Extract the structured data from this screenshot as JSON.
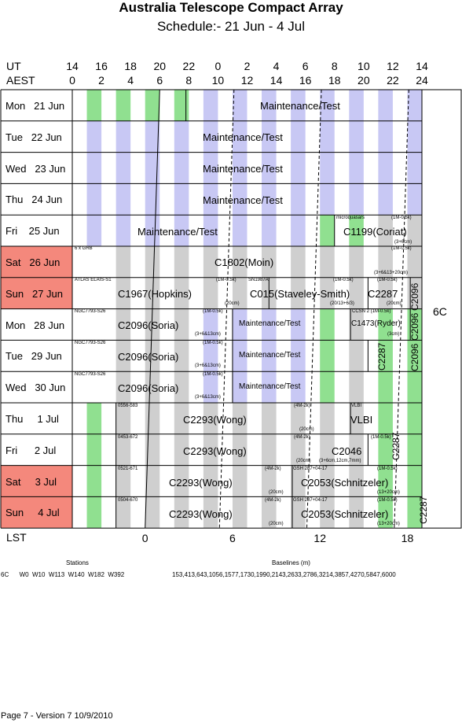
{
  "title": "Australia Telescope Compact Array",
  "subtitle": "Schedule:- 21 Jun - 4  Jul",
  "axis": {
    "ut_label": "UT",
    "aest_label": "AEST",
    "lst_label": "LST",
    "ut_ticks": [
      "14",
      "16",
      "18",
      "20",
      "22",
      "0",
      "2",
      "4",
      "6",
      "8",
      "10",
      "12",
      "14"
    ],
    "aest_ticks": [
      "0",
      "2",
      "4",
      "6",
      "8",
      "10",
      "12",
      "14",
      "16",
      "18",
      "20",
      "22",
      "24"
    ],
    "lst_ticks": [
      "0",
      "6",
      "12",
      "18"
    ]
  },
  "colors": {
    "weekend": "#f4887c",
    "gray": "#cfcfcf",
    "blue": "#c8c8f4",
    "green": "#90e090"
  },
  "days": [
    {
      "label": "Mon   21 Jun",
      "weekend": false
    },
    {
      "label": "Tue   22 Jun",
      "weekend": false
    },
    {
      "label": "Wed   23 Jun",
      "weekend": false
    },
    {
      "label": "Thu   24 Jun",
      "weekend": false
    },
    {
      "label": "Fri    25 Jun",
      "weekend": false
    },
    {
      "label": "Sat   26 Jun",
      "weekend": true
    },
    {
      "label": "Sun   27 Jun",
      "weekend": true
    },
    {
      "label": "Mon   28 Jun",
      "weekend": false
    },
    {
      "label": "Tue   29 Jun",
      "weekend": false
    },
    {
      "label": "Wed   30 Jun",
      "weekend": false
    },
    {
      "label": "Thu     1 Jul",
      "weekend": false
    },
    {
      "label": "Fri      2 Jul",
      "weekend": false
    },
    {
      "label": "Sat     3 Jul",
      "weekend": true
    },
    {
      "label": "Sun     4 Jul",
      "weekend": true
    }
  ],
  "array_config": "6C",
  "blocks": [
    {
      "text": "Maintenance/Test",
      "size": 13
    },
    {
      "text": "Maintenance/Test",
      "size": 13
    },
    {
      "text": "Maintenance/Test",
      "size": 13
    },
    {
      "text": "Maintenance/Test",
      "size": 13
    },
    {
      "text": "Maintenance/Test",
      "size": 13
    },
    {
      "text": "microquasars",
      "size": 6
    },
    {
      "text": "(1M-0.5k)",
      "size": 6
    },
    {
      "text": "C1199(Coriat)",
      "size": 13
    },
    {
      "text": "(3+6cm)",
      "size": 6
    },
    {
      "text": "6 x GRB",
      "size": 6
    },
    {
      "text": "(1M-0.5k)",
      "size": 6
    },
    {
      "text": "C1802(Moin)",
      "size": 13
    },
    {
      "text": "(3+6&13+20cm)",
      "size": 6
    },
    {
      "text": "ATLAS ELAIS-S1",
      "size": 6
    },
    {
      "text": "(1M-0.5k)",
      "size": 6
    },
    {
      "text": "C1967(Hopkins)",
      "size": 13
    },
    {
      "text": "(20cm)",
      "size": 6
    },
    {
      "text": "SN1987A",
      "size": 6
    },
    {
      "text": "(1M-0.5k)",
      "size": 6
    },
    {
      "text": "C015(Staveley-Smith)",
      "size": 13
    },
    {
      "text": "(20/13+6/3)",
      "size": 6
    },
    {
      "text": "(1M-0.5k)",
      "size": 6
    },
    {
      "text": "C2287",
      "size": 13
    },
    {
      "text": "(20cm)",
      "size": 6
    },
    {
      "text": "C2096",
      "size": 12
    },
    {
      "text": "NGC7793-S26",
      "size": 6
    },
    {
      "text": "(1M-0.5k)",
      "size": 6
    },
    {
      "text": "C2096(Soria)",
      "size": 13
    },
    {
      "text": "(3+6&13cm)",
      "size": 6
    },
    {
      "text": "Maintenance/Test",
      "size": 10
    },
    {
      "text": "CCSN 2 (1M-0.5k)",
      "size": 6
    },
    {
      "text": "C1473(Ryder)",
      "size": 10
    },
    {
      "text": "(3cm)",
      "size": 6
    },
    {
      "text": "C2096",
      "size": 12
    },
    {
      "text": "NGC7793-S26",
      "size": 6
    },
    {
      "text": "(1M-0.5k)",
      "size": 6
    },
    {
      "text": "C2096(Soria)",
      "size": 13
    },
    {
      "text": "(3+6&13cm)",
      "size": 6
    },
    {
      "text": "Maintenance/Test",
      "size": 10
    },
    {
      "text": "C2287",
      "size": 12
    },
    {
      "text": "C2096",
      "size": 12
    },
    {
      "text": "NGC7793-S26",
      "size": 6
    },
    {
      "text": "(1M-0.5k)",
      "size": 6
    },
    {
      "text": "C2096(Soria)",
      "size": 13
    },
    {
      "text": "(3+6&13cm)",
      "size": 6
    },
    {
      "text": "Maintenance/Test",
      "size": 10
    },
    {
      "text": "0556-583",
      "size": 6
    },
    {
      "text": "C2293(Wong)",
      "size": 13
    },
    {
      "text": "(4M-2k)",
      "size": 6
    },
    {
      "text": "(20cm)",
      "size": 6
    },
    {
      "text": "VLBI",
      "size": 6
    },
    {
      "text": "VLBI",
      "size": 13
    },
    {
      "text": "0453-672",
      "size": 6
    },
    {
      "text": "C2293(Wong)",
      "size": 13
    },
    {
      "text": "(4M-2k)",
      "size": 6
    },
    {
      "text": "(1M-0.5k)",
      "size": 6
    },
    {
      "text": "C2046",
      "size": 13
    },
    {
      "text": "(20cm)",
      "size": 6
    },
    {
      "text": "(3+6cm,12cm,7mm)",
      "size": 6
    },
    {
      "text": "C2287",
      "size": 12
    },
    {
      "text": "0521-671",
      "size": 6
    },
    {
      "text": "(4M-2k)",
      "size": 6
    },
    {
      "text": "GSH 287+04-17",
      "size": 6
    },
    {
      "text": "(1M-0.5k)",
      "size": 6
    },
    {
      "text": "C2293(Wong)",
      "size": 13
    },
    {
      "text": "C2053(Schnitzeler)",
      "size": 13
    },
    {
      "text": "(20cm)",
      "size": 6
    },
    {
      "text": "(13+20cm)",
      "size": 6
    },
    {
      "text": "0504-670",
      "size": 6
    },
    {
      "text": "(4M-2k)",
      "size": 6
    },
    {
      "text": "GSH 287+04-17",
      "size": 6
    },
    {
      "text": "(1M-0.5k)",
      "size": 6
    },
    {
      "text": "C2293(Wong)",
      "size": 13
    },
    {
      "text": "C2053(Schnitzeler)",
      "size": 13
    },
    {
      "text": "(20cm)",
      "size": 6
    },
    {
      "text": "(13+20cm)",
      "size": 6
    },
    {
      "text": "C2287",
      "size": 12
    }
  ],
  "stations_label": "Stations",
  "stations": "6C      W0  W10  W113  W140  W182  W392",
  "baselines_label": "Baselines (m)",
  "baselines": "153,413,643,1056,1577,1730,1990,2143,2633,2786,3214,3857,4270,5847,6000",
  "footer": "Page 7 - Version 7  10/9/2010"
}
